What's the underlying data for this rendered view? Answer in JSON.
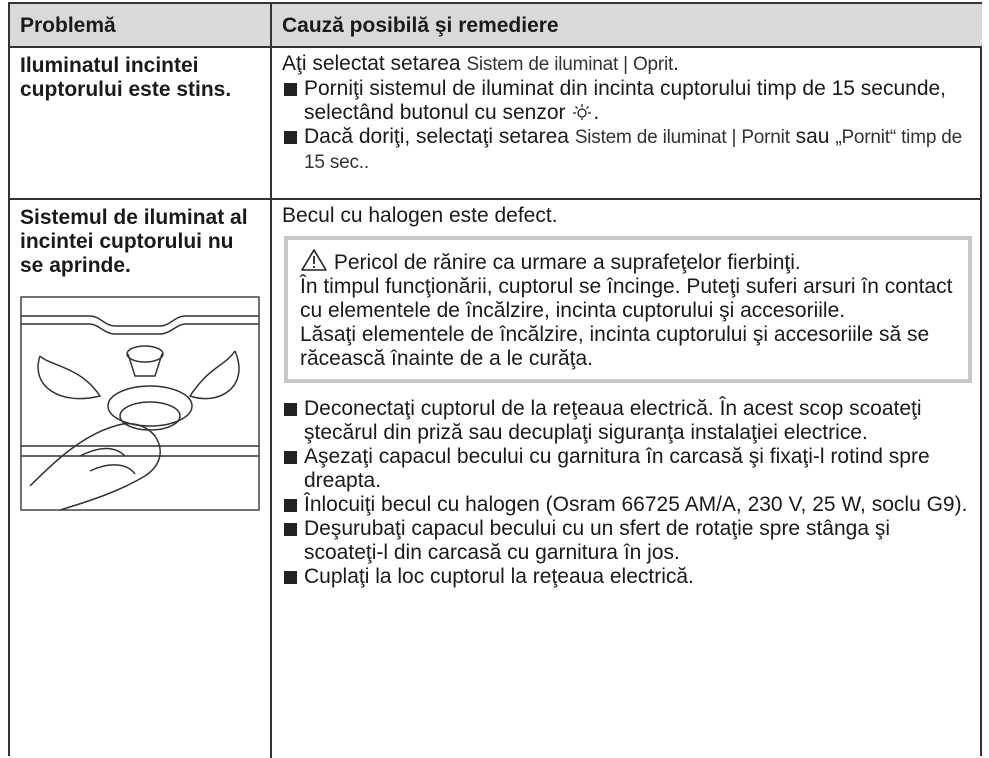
{
  "header": {
    "problem": "Problemă",
    "cause": "Cauză posibilă şi remediere"
  },
  "rows": [
    {
      "problem": "Iluminatul incintei cuptorului este stins.",
      "intro": [
        "Aţi selectat setarea",
        "Sistem de iluminat | Oprit",
        "."
      ],
      "bullets": [
        [
          "Porniţi sistemul de iluminat din incinta cuptorului timp de 15 secunde, selectând butonul cu senzor",
          "."
        ],
        [
          "Dacă doriţi, selectaţi setarea",
          "Sistem de iluminat | Pornit",
          "sau",
          "„Pornit“ timp de 15 sec.."
        ]
      ]
    },
    {
      "problem": "Sistemul de iluminat al incintei cuptorului nu se aprinde.",
      "intro": [
        "Becul cu halogen este defect."
      ],
      "warning": {
        "title": "Pericol de rănire ca urmare a suprafeţelor fierbinţi.",
        "paragraphs": [
          "În timpul funcţionării, cuptorul se încinge. Puteţi suferi arsuri în contact cu elementele de încălzire, incinta cuptorului şi accesoriile.",
          "Lăsaţi elementele de încălzire, incinta cuptorului şi accesoriile să se răcească înainte de a le curăţa."
        ]
      },
      "bullets": [
        [
          "Deconectaţi cuptorul de la reţeaua electrică. În acest scop scoateţi ştecărul din priză sau decuplaţi siguranţa instalaţiei electrice."
        ],
        [
          "Aşezaţi capacul becului cu garnitura în carcasă şi fixaţi-l rotind spre dreapta."
        ],
        [
          "Înlocuiţi becul cu halogen (Osram 66725 AM/A, 230 V, 25 W, soclu G9)."
        ],
        [
          "Deşurubaţi capacul becului cu un sfert de rotaţie spre stânga şi scoateţi-l din carcasă cu garnitura în jos."
        ],
        [
          "Cuplaţi la loc cuptorul la reţeaua electrică."
        ]
      ]
    }
  ]
}
